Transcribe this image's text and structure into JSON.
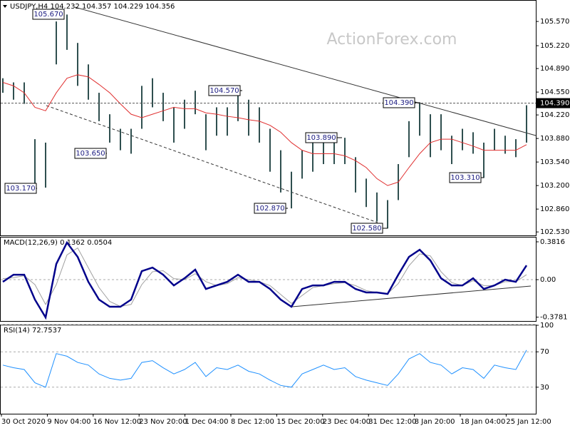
{
  "chart_data": [
    {
      "type": "price",
      "title": "USDJPY,H4  104.232 104.357 104.229 104.356",
      "high": [
        104.75,
        104.69,
        104.69,
        103.87,
        103.82,
        105.57,
        105.67,
        105.26,
        104.95,
        104.54,
        104.23,
        104.02,
        104.02,
        104.64,
        104.75,
        104.54,
        104.33,
        104.44,
        104.57,
        104.23,
        104.33,
        104.33,
        104.54,
        104.44,
        104.33,
        104.02,
        103.71,
        103.4,
        103.71,
        103.82,
        103.92,
        103.82,
        103.89,
        103.61,
        103.3,
        103.1,
        102.99,
        103.51,
        104.13,
        104.39,
        104.23,
        104.23,
        103.92,
        104.02,
        103.97,
        103.82,
        104.02,
        103.92,
        103.87,
        104.36
      ],
      "low": [
        104.54,
        104.44,
        104.38,
        103.2,
        103.17,
        104.95,
        105.16,
        104.64,
        104.44,
        104.13,
        103.82,
        103.71,
        103.66,
        104.02,
        104.33,
        104.13,
        103.82,
        104.02,
        104.23,
        103.71,
        103.92,
        103.92,
        104.13,
        103.92,
        103.82,
        103.4,
        103.1,
        102.87,
        103.3,
        103.4,
        103.51,
        103.51,
        103.51,
        103.1,
        102.89,
        102.68,
        102.58,
        102.99,
        103.61,
        103.92,
        103.61,
        103.71,
        103.51,
        103.71,
        103.66,
        103.31,
        103.71,
        103.66,
        103.61,
        103.82
      ],
      "color": "#2f4f4f",
      "ma": {
        "color": "#e03030",
        "values": [
          104.69,
          104.64,
          104.54,
          104.33,
          104.28,
          104.54,
          104.75,
          104.8,
          104.77,
          104.66,
          104.54,
          104.38,
          104.23,
          104.18,
          104.23,
          104.28,
          104.33,
          104.31,
          104.31,
          104.25,
          104.23,
          104.2,
          104.18,
          104.15,
          104.13,
          104.07,
          103.97,
          103.82,
          103.71,
          103.66,
          103.66,
          103.66,
          103.63,
          103.56,
          103.46,
          103.3,
          103.2,
          103.25,
          103.46,
          103.66,
          103.82,
          103.87,
          103.87,
          103.82,
          103.77,
          103.71,
          103.71,
          103.71,
          103.71,
          103.79
        ]
      },
      "annotations": [
        {
          "value": 105.67,
          "label": "105.670"
        },
        {
          "value": 104.57,
          "label": "104.570"
        },
        {
          "value": 103.65,
          "label": "103.650"
        },
        {
          "value": 103.17,
          "label": "103.170"
        },
        {
          "value": 104.39,
          "label": "104.390"
        },
        {
          "value": 103.89,
          "label": "103.890"
        },
        {
          "value": 102.87,
          "label": "102.870"
        },
        {
          "value": 102.58,
          "label": "102.580"
        },
        {
          "value": 103.31,
          "label": "103.310"
        }
      ],
      "price_line": {
        "value": 104.39,
        "label": "104.390"
      },
      "ylim": [
        102.48,
        105.88
      ],
      "yticks": [
        {
          "value": 105.57,
          "label": "105.570"
        },
        {
          "value": 105.22,
          "label": "105.220"
        },
        {
          "value": 104.89,
          "label": "104.890"
        },
        {
          "value": 104.55,
          "label": "104.550"
        },
        {
          "value": 104.22,
          "label": "104.220"
        },
        {
          "value": 103.88,
          "label": "103.880"
        },
        {
          "value": 103.54,
          "label": "103.540"
        },
        {
          "value": 103.2,
          "label": "103.200"
        },
        {
          "value": 102.86,
          "label": "102.860"
        },
        {
          "value": 102.53,
          "label": "102.530"
        }
      ]
    },
    {
      "type": "macd",
      "title": "MACD(12,26,9) 0.1362 0.0504",
      "series": [
        {
          "color": "#00008b",
          "values": [
            -0.022,
            0.05,
            0.05,
            -0.201,
            -0.381,
            0.158,
            0.374,
            0.23,
            -0.022,
            -0.201,
            -0.273,
            -0.273,
            -0.201,
            0.086,
            0.122,
            0.05,
            -0.058,
            0.014,
            0.101,
            -0.094,
            -0.058,
            -0.022,
            0.05,
            -0.022,
            -0.022,
            -0.094,
            -0.201,
            -0.273,
            -0.094,
            -0.058,
            -0.058,
            -0.022,
            -0.022,
            -0.094,
            -0.129,
            -0.129,
            -0.144,
            0.05,
            0.23,
            0.302,
            0.194,
            0.014,
            -0.058,
            -0.058,
            0.014,
            -0.094,
            -0.058,
            0,
            -0.022,
            0.144
          ]
        },
        {
          "color": "#a0a0a0",
          "values": [
            0.01,
            0.02,
            0.04,
            -0.05,
            -0.25,
            -0.05,
            0.25,
            0.32,
            0.12,
            -0.08,
            -0.22,
            -0.27,
            -0.25,
            -0.05,
            0.08,
            0.09,
            0.01,
            0.0,
            0.06,
            -0.02,
            -0.06,
            -0.04,
            0.02,
            0.0,
            -0.02,
            -0.06,
            -0.15,
            -0.24,
            -0.16,
            -0.08,
            -0.06,
            -0.04,
            -0.03,
            -0.06,
            -0.11,
            -0.13,
            -0.14,
            -0.04,
            0.14,
            0.26,
            0.24,
            0.08,
            -0.03,
            -0.06,
            -0.01,
            -0.06,
            -0.06,
            -0.02,
            -0.02,
            0.05
          ]
        }
      ],
      "ylim": [
        -0.417,
        0.432
      ],
      "yticks": [
        0.3816,
        {
          "value": 0,
          "label": "0.00"
        },
        -0.3781
      ]
    },
    {
      "type": "rsi",
      "title": "RSI(14) 72.7537",
      "series": [
        {
          "color": "#1e90ff",
          "values": [
            55,
            52,
            50,
            35,
            30,
            68,
            65,
            58,
            55,
            45,
            40,
            38,
            40,
            58,
            60,
            52,
            45,
            50,
            58,
            42,
            52,
            50,
            55,
            48,
            45,
            38,
            32,
            30,
            45,
            50,
            55,
            50,
            52,
            42,
            38,
            35,
            32,
            45,
            62,
            68,
            58,
            55,
            45,
            52,
            50,
            40,
            55,
            52,
            50,
            72
          ]
        }
      ],
      "ylim": [
        0,
        100
      ],
      "yticks": [
        100,
        70,
        30
      ]
    }
  ],
  "watermark": "ActionForex.com",
  "x_labels": [
    "30 Oct 2020",
    "9 Nov 04:00",
    "16 Nov 12:00",
    "23 Nov 20:00",
    "1 Dec 04:00",
    "8 Dec 12:00",
    "15 Dec 20:00",
    "23 Dec 04:00",
    "31 Dec 12:00",
    "8 Jan 20:00",
    "18 Jan 04:00",
    "25 Jan 12:00"
  ]
}
